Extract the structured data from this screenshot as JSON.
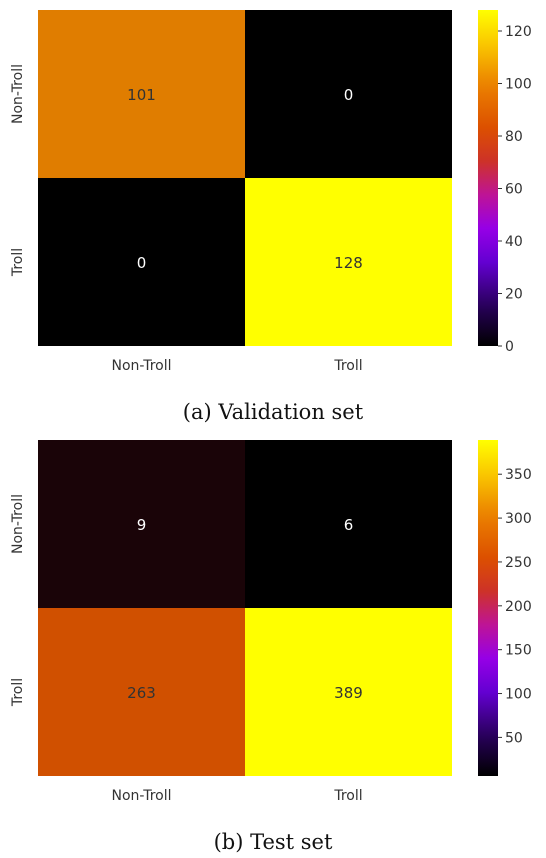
{
  "chart_data": [
    {
      "type": "heatmap",
      "title": "",
      "caption": "(a) Validation set",
      "rows": [
        "Non-Troll",
        "Troll"
      ],
      "columns": [
        "Non-Troll",
        "Troll"
      ],
      "values": [
        [
          101,
          0
        ],
        [
          0,
          128
        ]
      ],
      "colorbar": {
        "min": 0,
        "max": 128,
        "ticks": [
          0,
          20,
          40,
          60,
          80,
          100,
          120
        ],
        "colormap": "gnuplot"
      },
      "cell_colors": [
        [
          "#e07d00",
          "#000000"
        ],
        [
          "#000000",
          "#ffff00"
        ]
      ]
    },
    {
      "type": "heatmap",
      "title": "",
      "caption": "(b) Test set",
      "rows": [
        "Non-Troll",
        "Troll"
      ],
      "columns": [
        "Non-Troll",
        "Troll"
      ],
      "values": [
        [
          9,
          6
        ],
        [
          263,
          389
        ]
      ],
      "colorbar": {
        "min": 6,
        "max": 389,
        "ticks": [
          50,
          100,
          150,
          200,
          250,
          300,
          350
        ],
        "colormap": "gnuplot"
      },
      "cell_colors": [
        [
          "#1a0408",
          "#000000"
        ],
        [
          "#d05000",
          "#ffff00"
        ]
      ]
    }
  ]
}
